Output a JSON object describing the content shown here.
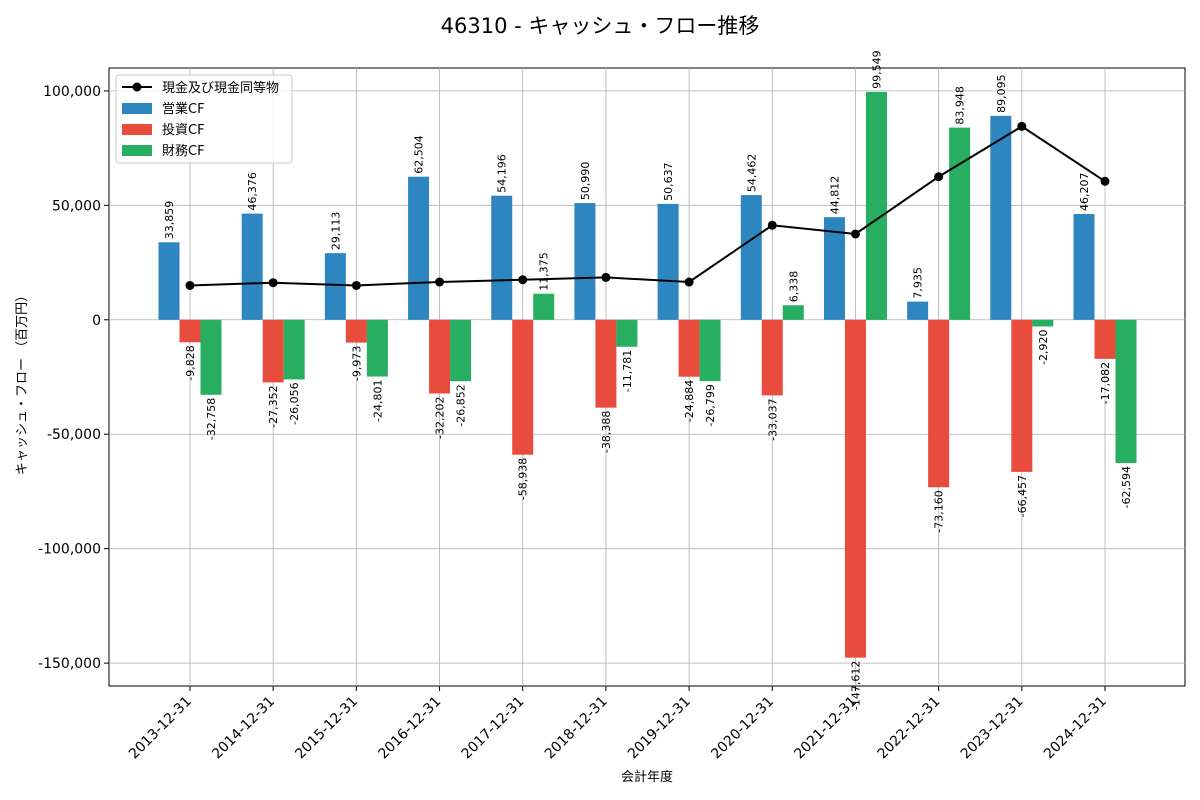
{
  "chart_data": {
    "type": "bar",
    "title": "46310 - キャッシュ・フロー推移",
    "xlabel": "会計年度",
    "ylabel": "キャッシュ・フロー （百万円）",
    "categories": [
      "2013-12-31",
      "2014-12-31",
      "2015-12-31",
      "2016-12-31",
      "2017-12-31",
      "2018-12-31",
      "2019-12-31",
      "2020-12-31",
      "2021-12-31",
      "2022-12-31",
      "2023-12-31",
      "2024-12-31"
    ],
    "ylim": [
      -160000,
      110000
    ],
    "yticks": [
      100000,
      50000,
      0,
      -50000,
      -100000,
      -150000
    ],
    "ytick_labels": [
      "100,000",
      "50,000",
      "0",
      "-50,000",
      "-100,000",
      "-150,000"
    ],
    "grid": true,
    "legend_position": "top-left",
    "series": [
      {
        "name": "営業CF",
        "kind": "bar",
        "color": "#2e86c1",
        "values": [
          33859,
          46376,
          29113,
          62504,
          54196,
          50990,
          50637,
          54462,
          44812,
          7935,
          89095,
          46207
        ],
        "labels": [
          "33,859",
          "46,376",
          "29,113",
          "62,504",
          "54,196",
          "50,990",
          "50,637",
          "54,462",
          "44,812",
          "7,935",
          "89,095",
          "46,207"
        ]
      },
      {
        "name": "投資CF",
        "kind": "bar",
        "color": "#e74c3c",
        "values": [
          -9828,
          -27352,
          -9973,
          -32202,
          -58938,
          -38388,
          -24884,
          -33037,
          -147612,
          -73160,
          -66457,
          -17082
        ],
        "labels": [
          "-9,828",
          "-27,352",
          "-9,973",
          "-32,202",
          "-58,938",
          "-38,388",
          "-24,884",
          "-33,037",
          "-147,612",
          "-73,160",
          "-66,457",
          "-17,082"
        ]
      },
      {
        "name": "財務CF",
        "kind": "bar",
        "color": "#27ae60",
        "values": [
          -32758,
          -26056,
          -24801,
          -26852,
          11375,
          -11781,
          -26799,
          6338,
          99549,
          83948,
          -2920,
          -62594
        ],
        "labels": [
          "-32,758",
          "-26,056",
          "-24,801",
          "-26,852",
          "11,375",
          "-11,781",
          "-26,799",
          "6,338",
          "99,549",
          "83,948",
          "-2,920",
          "-62,594"
        ]
      },
      {
        "name": "現金及び現金同等物",
        "kind": "line",
        "color": "#000000",
        "values": [
          15000,
          16200,
          15000,
          16500,
          17500,
          18500,
          16500,
          41300,
          37500,
          62500,
          84500,
          60500
        ]
      }
    ]
  }
}
